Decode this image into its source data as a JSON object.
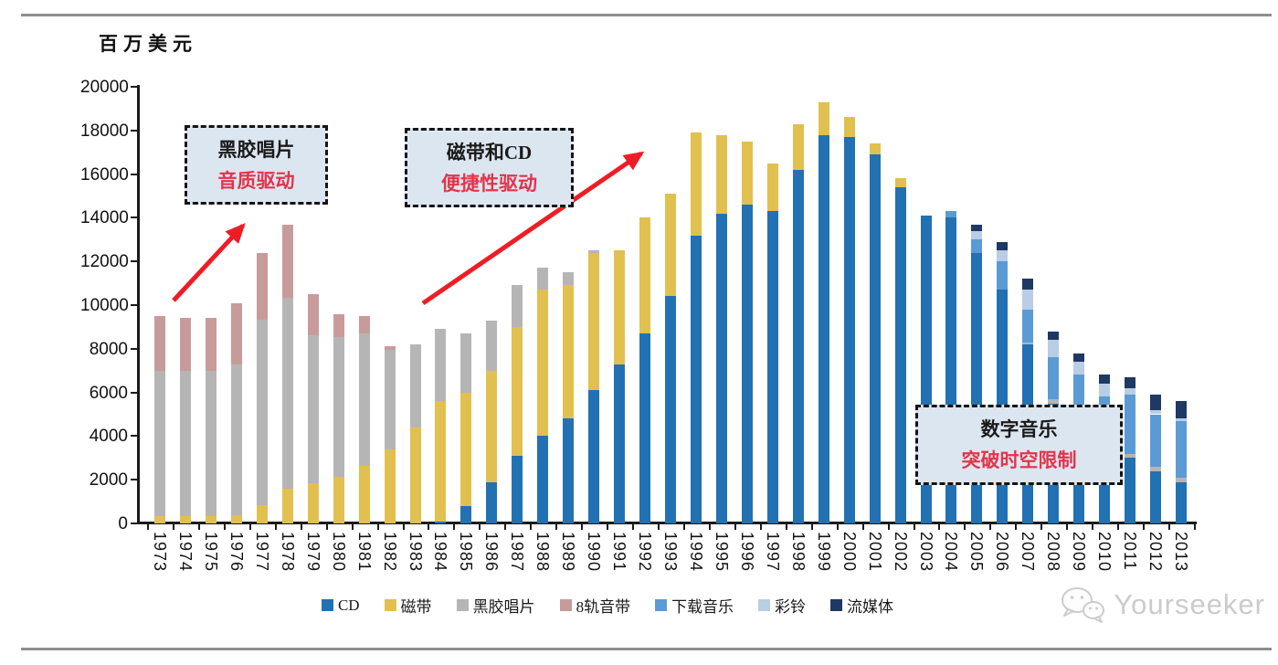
{
  "watermark": {
    "text": "Yourseeker"
  },
  "annotations": [
    {
      "line1": "黑胶唱片",
      "line2": "音质驱动"
    },
    {
      "line1": "磁带和CD",
      "line2": "便捷性驱动"
    },
    {
      "line1": "数字音乐",
      "line2": "突破时空限制"
    }
  ],
  "chart_data": {
    "type": "bar",
    "stacked": true,
    "title": "",
    "ylabel": "百万美元",
    "xlabel": "",
    "ylim": [
      0,
      20000
    ],
    "ytick_step": 2000,
    "yticks": [
      0,
      2000,
      4000,
      6000,
      8000,
      10000,
      12000,
      14000,
      16000,
      18000,
      20000
    ],
    "grid": false,
    "legend_position": "bottom",
    "categories": [
      1973,
      1974,
      1975,
      1976,
      1977,
      1978,
      1979,
      1980,
      1981,
      1982,
      1983,
      1984,
      1985,
      1986,
      1987,
      1988,
      1989,
      1990,
      1991,
      1992,
      1993,
      1994,
      1995,
      1996,
      1997,
      1998,
      1999,
      2000,
      2001,
      2002,
      2003,
      2004,
      2005,
      2006,
      2007,
      2008,
      2009,
      2010,
      2011,
      2012,
      2013
    ],
    "series": [
      {
        "name": "CD",
        "color": "#2271b3",
        "values": [
          0,
          0,
          0,
          0,
          0,
          0,
          0,
          0,
          0,
          0,
          0,
          100,
          800,
          1900,
          3100,
          4000,
          4800,
          6100,
          7300,
          8700,
          10400,
          13200,
          14200,
          14600,
          14300,
          16200,
          17800,
          17700,
          16900,
          15400,
          14100,
          14000,
          12400,
          10700,
          8200,
          5500,
          4900,
          3200,
          3000,
          2400,
          1900
        ]
      },
      {
        "name": "磁带",
        "color": "#e2c04f",
        "values": [
          350,
          350,
          350,
          360,
          850,
          1600,
          1850,
          2150,
          2650,
          3400,
          4400,
          5500,
          5200,
          5100,
          5900,
          6700,
          6100,
          6300,
          5200,
          5300,
          4700,
          4700,
          3600,
          2900,
          2200,
          2100,
          1500,
          900,
          500,
          400,
          0,
          0,
          0,
          0,
          0,
          0,
          0,
          0,
          0,
          0,
          0
        ]
      },
      {
        "name": "黑胶唱片",
        "color": "#b5b5b5",
        "values": [
          6650,
          6650,
          6650,
          6940,
          8480,
          8750,
          6750,
          6400,
          6050,
          4550,
          3800,
          3300,
          2700,
          2300,
          1900,
          1000,
          600,
          100,
          0,
          0,
          0,
          0,
          0,
          0,
          0,
          0,
          0,
          0,
          0,
          0,
          0,
          0,
          0,
          0,
          100,
          200,
          200,
          200,
          200,
          200,
          200
        ]
      },
      {
        "name": "8轨音带",
        "color": "#c89b9b",
        "values": [
          2500,
          2400,
          2400,
          2800,
          3050,
          3350,
          1900,
          1050,
          800,
          150,
          0,
          0,
          0,
          0,
          0,
          0,
          0,
          0,
          0,
          0,
          0,
          0,
          0,
          0,
          0,
          0,
          0,
          0,
          0,
          0,
          0,
          0,
          0,
          0,
          0,
          0,
          0,
          0,
          0,
          0,
          0
        ]
      },
      {
        "name": "下载音乐",
        "color": "#5b9bd5",
        "values": [
          0,
          0,
          0,
          0,
          0,
          0,
          0,
          0,
          0,
          0,
          0,
          0,
          0,
          0,
          0,
          0,
          0,
          0,
          0,
          0,
          0,
          0,
          0,
          0,
          0,
          0,
          0,
          0,
          0,
          0,
          0,
          300,
          600,
          1300,
          1500,
          1900,
          1700,
          2400,
          2700,
          2400,
          2600
        ]
      },
      {
        "name": "彩铃",
        "color": "#b9cde5",
        "values": [
          0,
          0,
          0,
          0,
          0,
          0,
          0,
          0,
          0,
          0,
          0,
          0,
          0,
          0,
          0,
          0,
          0,
          0,
          0,
          0,
          0,
          0,
          0,
          0,
          0,
          0,
          0,
          0,
          0,
          0,
          0,
          0,
          400,
          500,
          900,
          800,
          600,
          600,
          300,
          200,
          100
        ]
      },
      {
        "name": "流媒体",
        "color": "#1f3864",
        "values": [
          0,
          0,
          0,
          0,
          0,
          0,
          0,
          0,
          0,
          0,
          0,
          0,
          0,
          0,
          0,
          0,
          0,
          0,
          0,
          0,
          0,
          0,
          0,
          0,
          0,
          0,
          0,
          0,
          0,
          0,
          0,
          0,
          300,
          400,
          500,
          400,
          400,
          400,
          500,
          700,
          800
        ]
      }
    ]
  }
}
